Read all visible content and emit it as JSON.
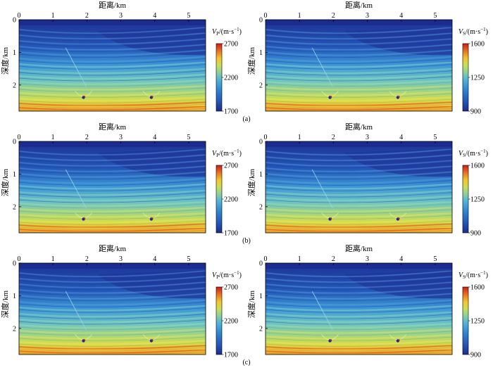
{
  "figure": {
    "x_label": "距离/km",
    "y_label": "深度/km",
    "x_ticks": [
      "0",
      "1",
      "2",
      "3",
      "4",
      "5"
    ],
    "x_tick_values": [
      0,
      1,
      2,
      3,
      4,
      5
    ],
    "x_range": [
      0,
      5.5
    ],
    "y_ticks": [
      "0",
      "1",
      "2"
    ],
    "y_tick_values": [
      0,
      1,
      2
    ],
    "y_range": [
      0,
      2.8
    ],
    "rows": [
      {
        "caption": "(a)"
      },
      {
        "caption": "(b)"
      },
      {
        "caption": "(c)"
      }
    ],
    "columns": [
      {
        "colorbar_label": "Vp/(m·s⁻¹)",
        "cb_var": "V",
        "cb_sub": "P",
        "cb_unit": "/(m·s",
        "cb_sup": "−1",
        "cb_close": ")",
        "cb_ticks": [
          "2700",
          "2200",
          "1700"
        ],
        "cb_tick_values": [
          2700,
          2200,
          1700
        ]
      },
      {
        "colorbar_label": "Vs/(m·s⁻¹)",
        "cb_var": "V",
        "cb_sub": "S",
        "cb_unit": "/(m·s",
        "cb_sup": "−1",
        "cb_close": ")",
        "cb_ticks": [
          "1600",
          "1250",
          "900"
        ],
        "cb_tick_values": [
          1600,
          1250,
          900
        ]
      }
    ],
    "colormap": [
      "#1c2b8f",
      "#2457b8",
      "#2e86d0",
      "#52b4d8",
      "#8fd19a",
      "#c9de54",
      "#f2c531",
      "#e9731e",
      "#c81d1d"
    ]
  }
}
